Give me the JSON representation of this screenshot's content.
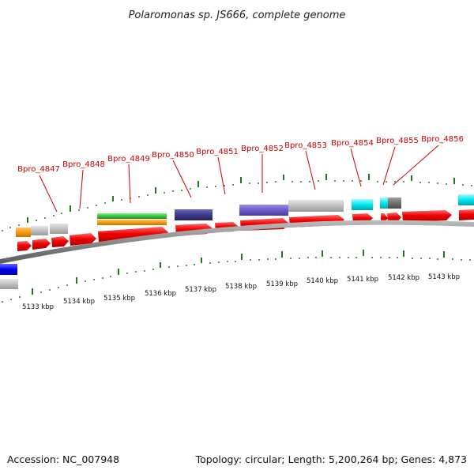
{
  "title": "Polaromonas sp. JS666, complete genome",
  "footer": {
    "accession": "Accession: NC_007948",
    "summary": "Topology: circular; Length: 5,200,264 bp; Genes: 4,873"
  },
  "gene_labels": [
    "Bpro_4847",
    "Bpro_4848",
    "Bpro_4849",
    "Bpro_4850",
    "Bpro_4851",
    "Bpro_4852",
    "Bpro_4853",
    "Bpro_4854",
    "Bpro_4855",
    "Bpro_4856"
  ],
  "kbp_labels": [
    "5133 kbp",
    "5134 kbp",
    "5135 kbp",
    "5136 kbp",
    "5137 kbp",
    "5138 kbp",
    "5139 kbp",
    "5140 kbp",
    "5141 kbp",
    "5142 kbp",
    "5143 kbp"
  ],
  "colors": {
    "gene": "#ee0000",
    "backbone": "#8a8a8a",
    "tick": "#1f7a1f",
    "label": "#cc0000",
    "orange": "#f39c12",
    "light_gray": "#c0c0c0",
    "green": "#33cc33",
    "navy": "#3d3a8a",
    "slate": "#6a5acd",
    "cyan": "#00e5ee",
    "dark_gray": "#707070",
    "blue": "#0000ee"
  }
}
